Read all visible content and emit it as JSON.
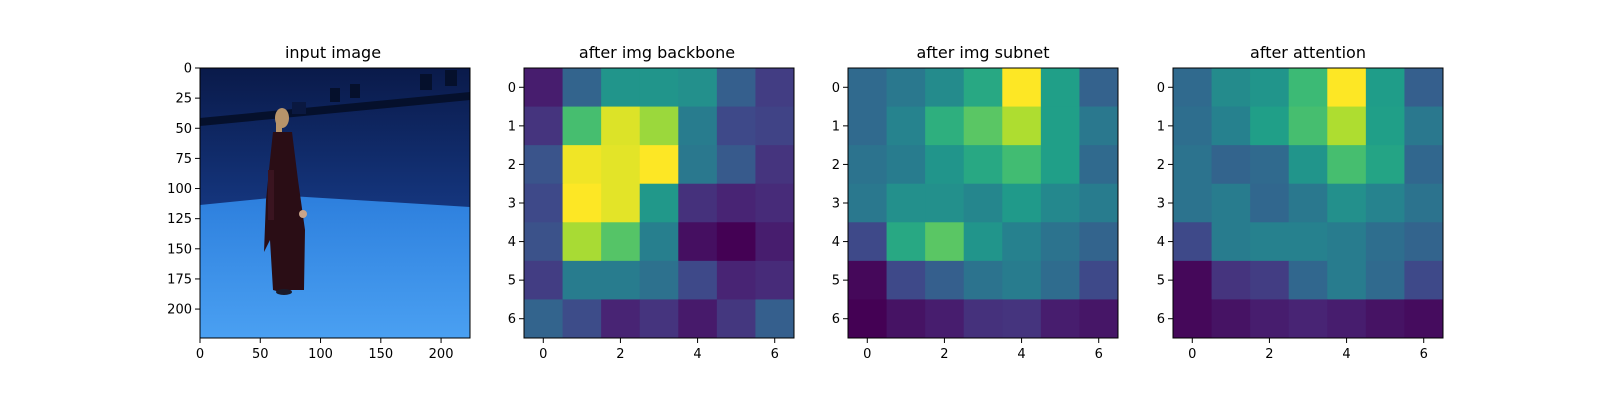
{
  "chart_data": [
    {
      "type": "image",
      "title": "input image",
      "x_ticks": [
        0,
        50,
        100,
        150,
        200
      ],
      "y_ticks": [
        0,
        25,
        50,
        75,
        100,
        125,
        150,
        175,
        200
      ],
      "xlim": [
        0,
        224
      ],
      "ylim": [
        224,
        0
      ],
      "colors": {
        "backdrop_dark": "#0b1f55",
        "backdrop_mid": "#163a86",
        "floor_light": "#3f95ee",
        "floor_mid": "#2d7fdd",
        "dress": "#2a0d15",
        "skin": "#c9a48a",
        "hair": "#b8946a",
        "rig": "#05102c"
      }
    },
    {
      "type": "heatmap",
      "title": "after img backbone",
      "colormap": "viridis",
      "x_ticks": [
        0,
        2,
        4,
        6
      ],
      "y_ticks": [
        0,
        1,
        2,
        3,
        4,
        5,
        6
      ],
      "values": [
        [
          0.08,
          0.32,
          0.52,
          0.52,
          0.5,
          0.3,
          0.18
        ],
        [
          0.15,
          0.7,
          0.95,
          0.85,
          0.42,
          0.22,
          0.2
        ],
        [
          0.26,
          0.98,
          0.96,
          1.0,
          0.4,
          0.28,
          0.15
        ],
        [
          0.22,
          1.0,
          0.96,
          0.53,
          0.14,
          0.1,
          0.12
        ],
        [
          0.25,
          0.87,
          0.73,
          0.43,
          0.04,
          0.0,
          0.08
        ],
        [
          0.18,
          0.42,
          0.42,
          0.37,
          0.22,
          0.1,
          0.12
        ],
        [
          0.32,
          0.23,
          0.1,
          0.15,
          0.07,
          0.16,
          0.3
        ]
      ]
    },
    {
      "type": "heatmap",
      "title": "after img subnet",
      "colormap": "viridis",
      "x_ticks": [
        0,
        2,
        4,
        6
      ],
      "y_ticks": [
        0,
        1,
        2,
        3,
        4,
        5,
        6
      ],
      "values": [
        [
          0.34,
          0.4,
          0.48,
          0.6,
          1.0,
          0.56,
          0.31
        ],
        [
          0.34,
          0.45,
          0.63,
          0.74,
          0.88,
          0.56,
          0.4
        ],
        [
          0.38,
          0.42,
          0.52,
          0.6,
          0.69,
          0.56,
          0.34
        ],
        [
          0.4,
          0.5,
          0.5,
          0.46,
          0.54,
          0.47,
          0.42
        ],
        [
          0.22,
          0.6,
          0.74,
          0.52,
          0.44,
          0.38,
          0.32
        ],
        [
          0.02,
          0.22,
          0.3,
          0.38,
          0.42,
          0.35,
          0.22
        ],
        [
          0.0,
          0.05,
          0.08,
          0.14,
          0.15,
          0.08,
          0.06
        ]
      ]
    },
    {
      "type": "heatmap",
      "title": "after attention",
      "colormap": "viridis",
      "x_ticks": [
        0,
        2,
        4,
        6
      ],
      "y_ticks": [
        0,
        1,
        2,
        3,
        4,
        5,
        6
      ],
      "values": [
        [
          0.34,
          0.48,
          0.52,
          0.68,
          1.0,
          0.55,
          0.3
        ],
        [
          0.36,
          0.44,
          0.56,
          0.7,
          0.88,
          0.56,
          0.4
        ],
        [
          0.38,
          0.32,
          0.34,
          0.52,
          0.7,
          0.58,
          0.33
        ],
        [
          0.38,
          0.42,
          0.33,
          0.4,
          0.5,
          0.45,
          0.38
        ],
        [
          0.22,
          0.42,
          0.44,
          0.44,
          0.42,
          0.36,
          0.32
        ],
        [
          0.02,
          0.15,
          0.18,
          0.33,
          0.42,
          0.34,
          0.22
        ],
        [
          0.02,
          0.05,
          0.08,
          0.1,
          0.08,
          0.05,
          0.03
        ]
      ]
    }
  ]
}
